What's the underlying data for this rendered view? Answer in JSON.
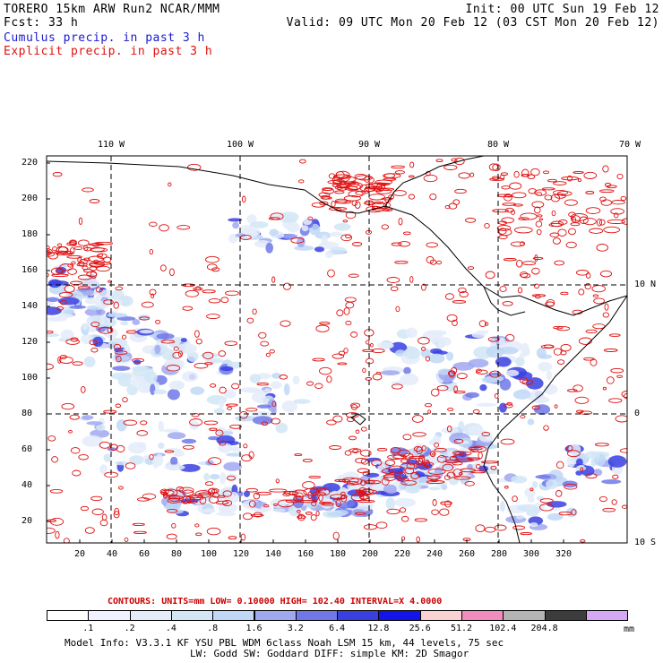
{
  "header": {
    "left_line1": "TORERO  15km ARW   Run2    NCAR/MMM",
    "left_line2": "Fcst:   33 h",
    "right_line1": "Init: 00 UTC Sun 19 Feb 12",
    "right_line2": "Valid: 09 UTC Mon 20 Feb 12 (03 CST Mon 20 Feb 12)",
    "legend_cumulus": "Cumulus precip. in past 3 h",
    "legend_explicit": "Explicit precip. in past 3 h"
  },
  "colors": {
    "cumulus": "#1a1ad0",
    "explicit": "#e01010",
    "contour_info": "#cc0000"
  },
  "map": {
    "lon_labels": [
      "110 W",
      "100 W",
      "90 W",
      "80 W",
      "70 W"
    ],
    "lat_labels": [
      "10 N",
      "0",
      "10 S"
    ],
    "y_ticks": [
      "220",
      "200",
      "180",
      "160",
      "140",
      "120",
      "100",
      "80",
      "60",
      "40",
      "20"
    ],
    "x_ticks": [
      "20",
      "40",
      "60",
      "80",
      "100",
      "120",
      "140",
      "160",
      "180",
      "200",
      "220",
      "240",
      "260",
      "280",
      "300",
      "320"
    ]
  },
  "contour_info": {
    "text": "CONTOURS:  UNITS=mm  LOW= 0.10000      HIGH=  102.40      INTERVAL=X  4.0000"
  },
  "colorbar": {
    "colors": [
      "#ffffff",
      "#f0f2ff",
      "#e4ecfa",
      "#d2e6f6",
      "#c0d8f6",
      "#a0a8f0",
      "#7078e8",
      "#3a40e0",
      "#1414e8",
      "#fad2d2",
      "#f28cbc",
      "#b4b4b4",
      "#3c3c3c",
      "#d4a8f4"
    ],
    "labels": [
      ".1",
      ".2",
      ".4",
      ".8",
      "1.6",
      "3.2",
      "6.4",
      "12.8",
      "25.6",
      "51.2",
      "102.4",
      "204.8"
    ],
    "unit": "mm"
  },
  "footer": {
    "line1": "Model Info: V3.3.1   KF    YSU PBL  WDM 6class  Noah LSM  15 km,   44 levels,   75 sec",
    "line2": "LW: Godd SW: Goddard DIFF: simple KM: 2D Smagor"
  }
}
